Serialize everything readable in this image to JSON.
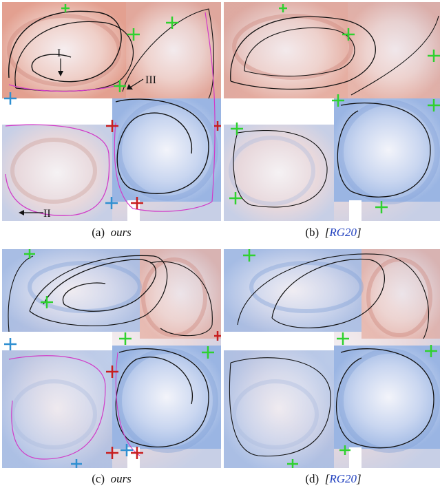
{
  "figure": {
    "panels": [
      {
        "id": "a",
        "label": "(a)",
        "name": "ours",
        "is_reference": false,
        "annotations": [
          {
            "text": "I"
          },
          {
            "text": "II"
          },
          {
            "text": "III"
          }
        ]
      },
      {
        "id": "b",
        "label": "(b)",
        "name": "RG20",
        "is_reference": true,
        "annotations": []
      },
      {
        "id": "c",
        "label": "(c)",
        "name": "ours",
        "is_reference": false,
        "annotations": []
      },
      {
        "id": "d",
        "label": "(d)",
        "name": "RG20",
        "is_reference": true,
        "annotations": []
      }
    ],
    "bracket_open": "[",
    "bracket_close": "]",
    "colors": {
      "positive": "#e3a090",
      "negative": "#9ab5e3",
      "neutral": "#f3eef0",
      "streamline": "#111111",
      "magenta": "#d13cc8",
      "marker_green": "#2fd12f",
      "marker_blue": "#2f8fd1",
      "marker_red": "#c81e1e",
      "citation": "#1f3fbf"
    }
  }
}
